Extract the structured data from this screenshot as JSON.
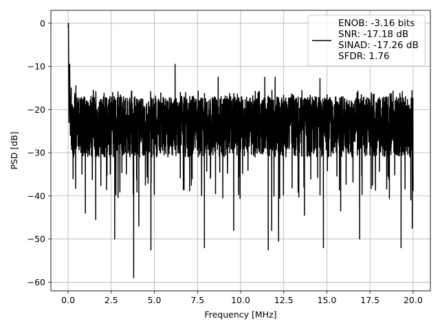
{
  "chart_data": {
    "type": "line",
    "title": "",
    "xlabel": "Frequency [MHz]",
    "ylabel": "PSD [dB]",
    "xlim": [
      -1.0,
      21.0
    ],
    "ylim": [
      -62.0,
      3.0
    ],
    "xticks": [
      0.0,
      2.5,
      5.0,
      7.5,
      10.0,
      12.5,
      15.0,
      17.5,
      20.0
    ],
    "xtick_labels": [
      "0.0",
      "2.5",
      "5.0",
      "7.5",
      "10.0",
      "12.5",
      "15.0",
      "17.5",
      "20.0"
    ],
    "yticks": [
      0,
      -10,
      -20,
      -30,
      -40,
      -50,
      -60
    ],
    "ytick_labels": [
      "0",
      "−10",
      "−20",
      "−30",
      "−40",
      "−50",
      "−60"
    ],
    "grid": true,
    "legend_position": "top-right",
    "legend_lines": [
      "ENOB: -3.16 bits",
      "SNR: -17.18 dB",
      "SINAD: -17.26 dB",
      "SFDR: 1.76"
    ],
    "series": [
      {
        "color": "#000000",
        "x_range": [
          0.0,
          20.0
        ],
        "initial_points": [
          [
            0.0,
            -1.0
          ],
          [
            0.02,
            0.0
          ],
          [
            0.05,
            -23.0
          ],
          [
            0.09,
            -9.5
          ],
          [
            0.13,
            -26.0
          ],
          [
            0.18,
            -15.0
          ]
        ],
        "envelope": {
          "typical_upper_db": -17.0,
          "typical_lower_db": -31.0,
          "upper_peaks": [
            [
              6.2,
              -9.5
            ],
            [
              8.7,
              -12.5
            ],
            [
              11.4,
              -12.5
            ],
            [
              14.6,
              -12.8
            ],
            [
              12.0,
              -12.5
            ],
            [
              0.45,
              -14.5
            ]
          ],
          "lower_dips": [
            [
              3.8,
              -59.0
            ],
            [
              4.8,
              -52.5
            ],
            [
              2.7,
              -50.0
            ],
            [
              7.9,
              -52.0
            ],
            [
              11.6,
              -52.5
            ],
            [
              12.2,
              -50.5
            ],
            [
              14.8,
              -52.0
            ],
            [
              16.9,
              -50.0
            ],
            [
              19.3,
              -52.0
            ],
            [
              19.95,
              -47.5
            ],
            [
              1.6,
              -45.5
            ],
            [
              4.1,
              -47.0
            ],
            [
              9.6,
              -48.0
            ],
            [
              11.8,
              -48.0
            ],
            [
              1.0,
              -44.0
            ],
            [
              13.7,
              -44.5
            ],
            [
              15.8,
              -43.5
            ]
          ]
        }
      }
    ]
  }
}
